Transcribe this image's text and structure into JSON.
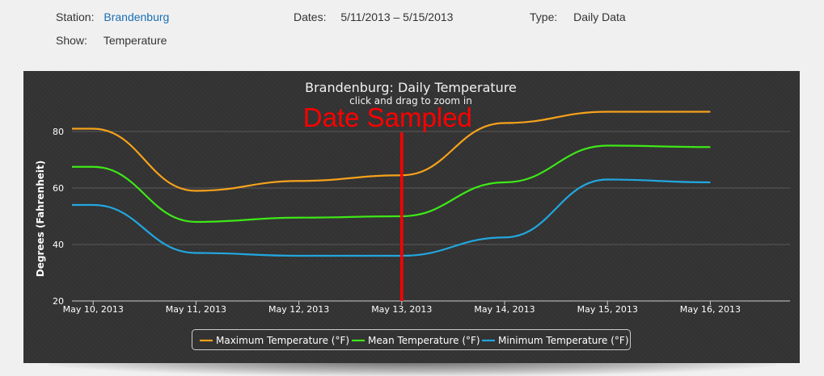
{
  "header": {
    "station_label": "Station:",
    "station_value": "Brandenburg",
    "dates_label": "Dates:",
    "dates_value": "5/11/2013 – 5/15/2013",
    "type_label": "Type:",
    "type_value": "Daily Data",
    "show_label": "Show:",
    "show_value": "Temperature"
  },
  "chart_data": {
    "type": "line",
    "title": "Brandenburg: Daily Temperature",
    "subtitle": "click and drag to zoom in",
    "ylabel": "Degrees (Fahrenheit)",
    "xlabel": "",
    "ylim": [
      20,
      90
    ],
    "yticks": [
      20,
      40,
      60,
      80
    ],
    "x_tick_labels": [
      "May 10, 2013",
      "May 11, 2013",
      "May 12, 2013",
      "May 13, 2013",
      "May 14, 2013",
      "May 15, 2013",
      "May 16, 2013"
    ],
    "grid": true,
    "legend_position": "bottom-center",
    "annotation": {
      "text": "Date Sampled",
      "x": "May 13, 2013",
      "color": "#ff0000"
    },
    "x": [
      "May 9, 2013",
      "May 10, 2013",
      "May 11, 2013",
      "May 12, 2013",
      "May 13, 2013",
      "May 14, 2013",
      "May 15, 2013",
      "May 16, 2013"
    ],
    "series": [
      {
        "name": "Maximum Temperature (°F)",
        "color": "#f7a21b",
        "values": [
          81,
          81,
          59,
          62.5,
          64.5,
          83,
          87,
          87
        ]
      },
      {
        "name": "Mean Temperature (°F)",
        "color": "#3ee817",
        "values": [
          67.5,
          67.5,
          48,
          49.5,
          50,
          62,
          75,
          74.5
        ]
      },
      {
        "name": "Minimum Temperature (°F)",
        "color": "#22a7e0",
        "values": [
          54,
          54,
          37,
          36,
          36,
          42.5,
          63,
          62
        ]
      }
    ]
  }
}
